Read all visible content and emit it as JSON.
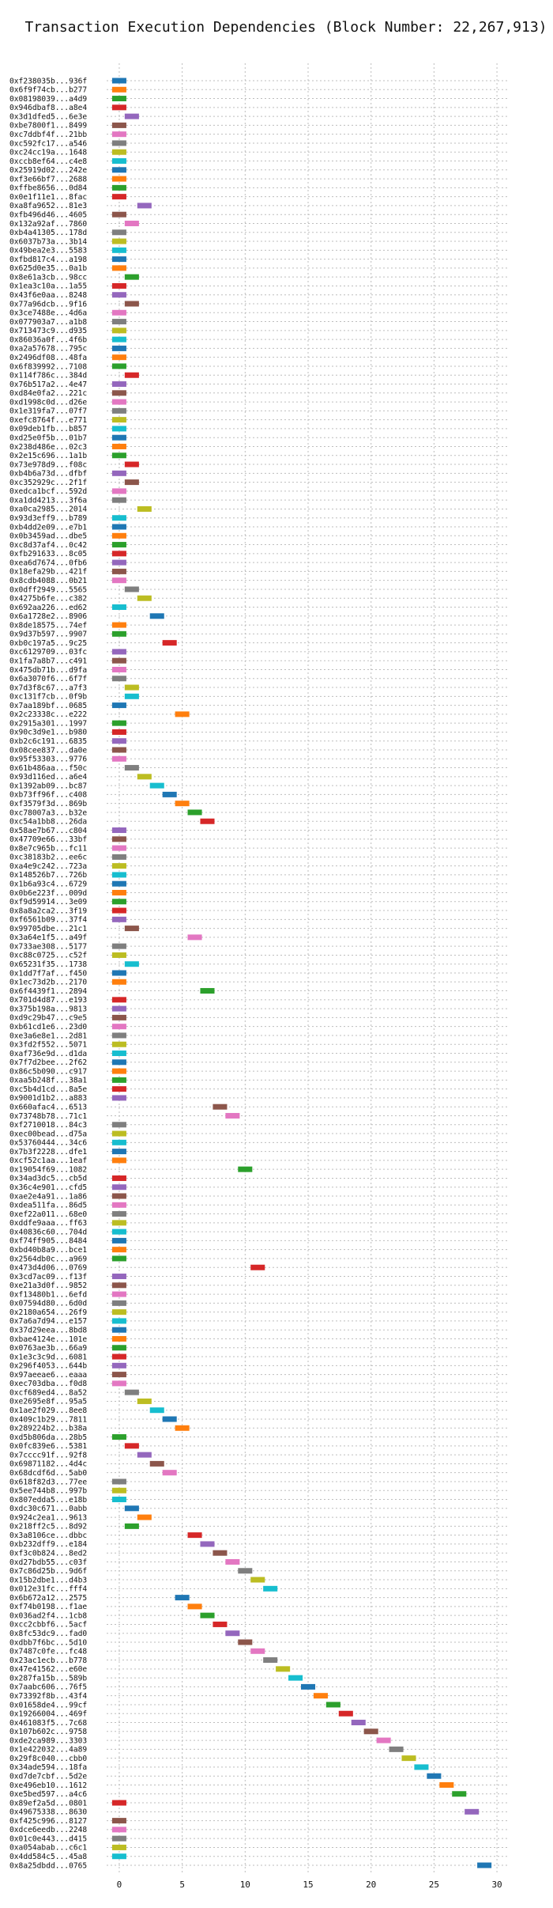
{
  "chart_data": {
    "type": "bar",
    "orientation": "horizontal-gantt",
    "title": "Transaction Execution Dependencies (Block Number: 22,267,913)",
    "xlabel": "",
    "ylabel": "",
    "xlim": [
      -1,
      31
    ],
    "xticks": [
      "0",
      "5",
      "10",
      "15",
      "20",
      "25",
      "30"
    ],
    "grid": "both-dotted",
    "colors": [
      "#1f77b4",
      "#ff7f0e",
      "#2ca02c",
      "#d62728",
      "#9467bd",
      "#8c564b",
      "#e377c2",
      "#7f7f7f",
      "#bcbd22",
      "#17becf"
    ],
    "transactions": [
      {
        "label": "0xf238035b...936f",
        "start": 0
      },
      {
        "label": "0x6f9f74cb...b277",
        "start": 0
      },
      {
        "label": "0x08198039...a4d9",
        "start": 0
      },
      {
        "label": "0x946dbaf8...a8e4",
        "start": 0
      },
      {
        "label": "0x3d1dfed5...6e3e",
        "start": 1
      },
      {
        "label": "0xbe7800f1...8499",
        "start": 0
      },
      {
        "label": "0xc7ddbf4f...21bb",
        "start": 0
      },
      {
        "label": "0xc592fc17...a546",
        "start": 0
      },
      {
        "label": "0xc24cc19a...1648",
        "start": 0
      },
      {
        "label": "0xccb8ef64...c4e8",
        "start": 0
      },
      {
        "label": "0x25919d02...242e",
        "start": 0
      },
      {
        "label": "0xf3e66bf7...2688",
        "start": 0
      },
      {
        "label": "0xffbe8656...0d84",
        "start": 0
      },
      {
        "label": "0x0e1f11e1...8fac",
        "start": 0
      },
      {
        "label": "0xa8fa9652...81e3",
        "start": 2
      },
      {
        "label": "0xfb496d46...4605",
        "start": 0
      },
      {
        "label": "0x132a92af...7860",
        "start": 1
      },
      {
        "label": "0xb4a41305...178d",
        "start": 0
      },
      {
        "label": "0x6037b73a...3b14",
        "start": 0
      },
      {
        "label": "0x49bea2e3...5583",
        "start": 0
      },
      {
        "label": "0xfbd817c4...a198",
        "start": 0
      },
      {
        "label": "0x625d0e35...0a1b",
        "start": 0
      },
      {
        "label": "0x8e61a3cb...98cc",
        "start": 1
      },
      {
        "label": "0x1ea3c10a...1a55",
        "start": 0
      },
      {
        "label": "0x43f6e0aa...8248",
        "start": 0
      },
      {
        "label": "0x77a96dcb...9f16",
        "start": 1
      },
      {
        "label": "0x3ce7488e...4d6a",
        "start": 0
      },
      {
        "label": "0x077903a7...a1b8",
        "start": 0
      },
      {
        "label": "0x713473c9...d935",
        "start": 0
      },
      {
        "label": "0x86036a0f...4f6b",
        "start": 0
      },
      {
        "label": "0xa2a57678...795c",
        "start": 0
      },
      {
        "label": "0x2496df08...48fa",
        "start": 0
      },
      {
        "label": "0x6f839992...7108",
        "start": 0
      },
      {
        "label": "0x114f786c...384d",
        "start": 1
      },
      {
        "label": "0x76b517a2...4e47",
        "start": 0
      },
      {
        "label": "0xd84e0fa2...221c",
        "start": 0
      },
      {
        "label": "0xd1998c0d...d26e",
        "start": 0
      },
      {
        "label": "0x1e319fa7...07f7",
        "start": 0
      },
      {
        "label": "0xefc8764f...e771",
        "start": 0
      },
      {
        "label": "0x09deb1fb...b857",
        "start": 0
      },
      {
        "label": "0xd25e0f5b...01b7",
        "start": 0
      },
      {
        "label": "0x238d486e...02c3",
        "start": 0
      },
      {
        "label": "0x2e15c696...1a1b",
        "start": 0
      },
      {
        "label": "0x73e978d9...f08c",
        "start": 1
      },
      {
        "label": "0xb4b6a73d...dfbf",
        "start": 0
      },
      {
        "label": "0xc352929c...2f1f",
        "start": 1
      },
      {
        "label": "0xedca1bcf...592d",
        "start": 0
      },
      {
        "label": "0xa1dd4213...3f6a",
        "start": 0
      },
      {
        "label": "0xa0ca2985...2014",
        "start": 2
      },
      {
        "label": "0x93d3eff9...b789",
        "start": 0
      },
      {
        "label": "0xb4dd2e09...e7b1",
        "start": 0
      },
      {
        "label": "0x0b3459ad...dbe5",
        "start": 0
      },
      {
        "label": "0xc8d37af4...0c42",
        "start": 0
      },
      {
        "label": "0xfb291633...8c05",
        "start": 0
      },
      {
        "label": "0xea6d7674...0fb6",
        "start": 0
      },
      {
        "label": "0x18efa29b...421f",
        "start": 0
      },
      {
        "label": "0x8cdb4088...0b21",
        "start": 0
      },
      {
        "label": "0x0dff2949...5565",
        "start": 1
      },
      {
        "label": "0x4275b6fe...c382",
        "start": 2
      },
      {
        "label": "0x692aa226...ed62",
        "start": 0
      },
      {
        "label": "0x6a1728e2...8906",
        "start": 3
      },
      {
        "label": "0x8de18575...74ef",
        "start": 0
      },
      {
        "label": "0x9d37b597...9907",
        "start": 0
      },
      {
        "label": "0xb0c197a5...9c25",
        "start": 4
      },
      {
        "label": "0xc6129709...03fc",
        "start": 0
      },
      {
        "label": "0x1fa7a8b7...c491",
        "start": 0
      },
      {
        "label": "0x475db71b...d9fa",
        "start": 0
      },
      {
        "label": "0x6a3070f6...6f7f",
        "start": 0
      },
      {
        "label": "0x7d3f8c67...a7f3",
        "start": 1
      },
      {
        "label": "0xc131f7cb...0f9b",
        "start": 1
      },
      {
        "label": "0x7aa189bf...0685",
        "start": 0
      },
      {
        "label": "0x2c23338c...e222",
        "start": 5
      },
      {
        "label": "0x2915a301...1997",
        "start": 0
      },
      {
        "label": "0x90c3d9e1...b980",
        "start": 0
      },
      {
        "label": "0xb2c6c191...6835",
        "start": 0
      },
      {
        "label": "0x08cee837...da0e",
        "start": 0
      },
      {
        "label": "0x95f53303...9776",
        "start": 0
      },
      {
        "label": "0x61b486aa...f50c",
        "start": 1
      },
      {
        "label": "0x93d116ed...a6e4",
        "start": 2
      },
      {
        "label": "0x1392ab09...bc87",
        "start": 3
      },
      {
        "label": "0xb73ff96f...c408",
        "start": 4
      },
      {
        "label": "0xf3579f3d...869b",
        "start": 5
      },
      {
        "label": "0xc78007a3...b32e",
        "start": 6
      },
      {
        "label": "0xc54a1bb8...26da",
        "start": 7
      },
      {
        "label": "0x58ae7b67...c804",
        "start": 0
      },
      {
        "label": "0x47709e66...33bf",
        "start": 0
      },
      {
        "label": "0x8e7c965b...fc11",
        "start": 0
      },
      {
        "label": "0xc38183b2...ee6c",
        "start": 0
      },
      {
        "label": "0xa4e9c242...723a",
        "start": 0
      },
      {
        "label": "0x148526b7...726b",
        "start": 0
      },
      {
        "label": "0x1b6a93c4...6729",
        "start": 0
      },
      {
        "label": "0x0b6e223f...009d",
        "start": 0
      },
      {
        "label": "0xf9d59914...3e09",
        "start": 0
      },
      {
        "label": "0x8a8a2ca2...3f19",
        "start": 0
      },
      {
        "label": "0xf6561b09...37f4",
        "start": 0
      },
      {
        "label": "0x99705dbe...21c1",
        "start": 1
      },
      {
        "label": "0x3a64e1f5...a49f",
        "start": 6
      },
      {
        "label": "0x733ae308...5177",
        "start": 0
      },
      {
        "label": "0xc88c0725...c52f",
        "start": 0
      },
      {
        "label": "0x65231f35...1738",
        "start": 1
      },
      {
        "label": "0x1dd7f7af...f450",
        "start": 0
      },
      {
        "label": "0x1ec73d2b...2170",
        "start": 0
      },
      {
        "label": "0x6f4439f1...2894",
        "start": 7
      },
      {
        "label": "0x701d4d87...e193",
        "start": 0
      },
      {
        "label": "0x375b198a...9813",
        "start": 0
      },
      {
        "label": "0xd9c29b47...c9e5",
        "start": 0
      },
      {
        "label": "0xb61cd1e6...23d0",
        "start": 0
      },
      {
        "label": "0xe3a6e8e1...2d81",
        "start": 0
      },
      {
        "label": "0x3fd2f552...5071",
        "start": 0
      },
      {
        "label": "0xaf736e9d...d1da",
        "start": 0
      },
      {
        "label": "0x7f7d2bee...2f62",
        "start": 0
      },
      {
        "label": "0x86c5b090...c917",
        "start": 0
      },
      {
        "label": "0xaa5b248f...38a1",
        "start": 0
      },
      {
        "label": "0xc5b4d1cd...8a5e",
        "start": 0
      },
      {
        "label": "0x9001d1b2...a883",
        "start": 0
      },
      {
        "label": "0x660afac4...6513",
        "start": 8
      },
      {
        "label": "0x73748b78...71c1",
        "start": 9
      },
      {
        "label": "0xf2710018...84c3",
        "start": 0
      },
      {
        "label": "0xec00bead...d75a",
        "start": 0
      },
      {
        "label": "0x53760444...34c6",
        "start": 0
      },
      {
        "label": "0x7b3f2228...dfe1",
        "start": 0
      },
      {
        "label": "0xcf52c1aa...1eaf",
        "start": 0
      },
      {
        "label": "0x19054f69...1082",
        "start": 10
      },
      {
        "label": "0x34ad3dc5...cb5d",
        "start": 0
      },
      {
        "label": "0x36c4e901...cfd5",
        "start": 0
      },
      {
        "label": "0xae2e4a91...1a86",
        "start": 0
      },
      {
        "label": "0xdea511fa...86d5",
        "start": 0
      },
      {
        "label": "0xef22a011...68e0",
        "start": 0
      },
      {
        "label": "0xddfe9aaa...ff63",
        "start": 0
      },
      {
        "label": "0x40836c60...704d",
        "start": 0
      },
      {
        "label": "0xf74ff905...8484",
        "start": 0
      },
      {
        "label": "0xbd40b8a9...bce1",
        "start": 0
      },
      {
        "label": "0x2564db0c...a969",
        "start": 0
      },
      {
        "label": "0x473d4d06...0769",
        "start": 11
      },
      {
        "label": "0x3cd7ac09...f13f",
        "start": 0
      },
      {
        "label": "0xe21a3d0f...9852",
        "start": 0
      },
      {
        "label": "0xf13480b1...6efd",
        "start": 0
      },
      {
        "label": "0x07594d80...6d0d",
        "start": 0
      },
      {
        "label": "0x2180a654...26f9",
        "start": 0
      },
      {
        "label": "0x7a6a7d94...e157",
        "start": 0
      },
      {
        "label": "0x37d29eea...8bd8",
        "start": 0
      },
      {
        "label": "0xbae4124e...101e",
        "start": 0
      },
      {
        "label": "0x0763ae3b...66a9",
        "start": 0
      },
      {
        "label": "0x1e3c3c9d...6081",
        "start": 0
      },
      {
        "label": "0x296f4053...644b",
        "start": 0
      },
      {
        "label": "0x97aeeae6...eaaa",
        "start": 0
      },
      {
        "label": "0xec703dba...f0d8",
        "start": 0
      },
      {
        "label": "0xcf689ed4...8a52",
        "start": 1
      },
      {
        "label": "0xe2695e8f...95a5",
        "start": 2
      },
      {
        "label": "0x1ae2f029...8ee8",
        "start": 3
      },
      {
        "label": "0x409c1b29...7811",
        "start": 4
      },
      {
        "label": "0x289224b2...b38a",
        "start": 5
      },
      {
        "label": "0xd5b806da...28b5",
        "start": 0
      },
      {
        "label": "0x0fc839e6...5381",
        "start": 1
      },
      {
        "label": "0x7cccc91f...92f8",
        "start": 2
      },
      {
        "label": "0x69871182...4d4c",
        "start": 3
      },
      {
        "label": "0x68dcdf6d...5ab0",
        "start": 4
      },
      {
        "label": "0x618f82d3...77ee",
        "start": 0
      },
      {
        "label": "0x5ee744b8...997b",
        "start": 0
      },
      {
        "label": "0x807edda5...e18b",
        "start": 0
      },
      {
        "label": "0xdc30c671...0abb",
        "start": 1
      },
      {
        "label": "0x924c2ea1...9613",
        "start": 2
      },
      {
        "label": "0x218ff2c5...8d92",
        "start": 1
      },
      {
        "label": "0x3a8106ce...dbbc",
        "start": 6
      },
      {
        "label": "0xb232dff9...e184",
        "start": 7
      },
      {
        "label": "0xf3c0b824...8ed2",
        "start": 8
      },
      {
        "label": "0xd27bdb55...c03f",
        "start": 9
      },
      {
        "label": "0x7c86d25b...9d6f",
        "start": 10
      },
      {
        "label": "0x15b2dbe1...d4b3",
        "start": 11
      },
      {
        "label": "0x012e31fc...fff4",
        "start": 12
      },
      {
        "label": "0x6b672a12...2575",
        "start": 5
      },
      {
        "label": "0xf74b0198...f1ae",
        "start": 6
      },
      {
        "label": "0x036ad2f4...1cb8",
        "start": 7
      },
      {
        "label": "0xcc2cbbf6...5acf",
        "start": 8
      },
      {
        "label": "0x8fc53dc9...fad0",
        "start": 9
      },
      {
        "label": "0xdbb7f6bc...5d10",
        "start": 10
      },
      {
        "label": "0x7487c0fe...fc48",
        "start": 11
      },
      {
        "label": "0x23ac1ecb...b778",
        "start": 12
      },
      {
        "label": "0x47e41562...e60e",
        "start": 13
      },
      {
        "label": "0x287fa15b...589b",
        "start": 14
      },
      {
        "label": "0x7aabc606...76f5",
        "start": 15
      },
      {
        "label": "0x73392f8b...43f4",
        "start": 16
      },
      {
        "label": "0x01658de4...99cf",
        "start": 17
      },
      {
        "label": "0x19266004...469f",
        "start": 18
      },
      {
        "label": "0x461083f5...7c68",
        "start": 19
      },
      {
        "label": "0x107b602c...9758",
        "start": 20
      },
      {
        "label": "0xde2ca989...3303",
        "start": 21
      },
      {
        "label": "0x1e422032...4a89",
        "start": 22
      },
      {
        "label": "0x29f8c040...cbb0",
        "start": 23
      },
      {
        "label": "0x34ade594...18fa",
        "start": 24
      },
      {
        "label": "0xd7de7cbf...5d2e",
        "start": 25
      },
      {
        "label": "0xe496eb10...1612",
        "start": 26
      },
      {
        "label": "0xe5bed597...a4c6",
        "start": 27
      },
      {
        "label": "0x89ef2a5d...0801",
        "start": 0
      },
      {
        "label": "0x49675338...8630",
        "start": 28
      },
      {
        "label": "0xf425c996...8127",
        "start": 0
      },
      {
        "label": "0xdce6eedb...2248",
        "start": 0
      },
      {
        "label": "0x01c0e443...d415",
        "start": 0
      },
      {
        "label": "0xa054abab...c6c1",
        "start": 0
      },
      {
        "label": "0x4dd584c5...45a8",
        "start": 0
      },
      {
        "label": "0x8a25dbdd...0765",
        "start": 29
      }
    ]
  }
}
